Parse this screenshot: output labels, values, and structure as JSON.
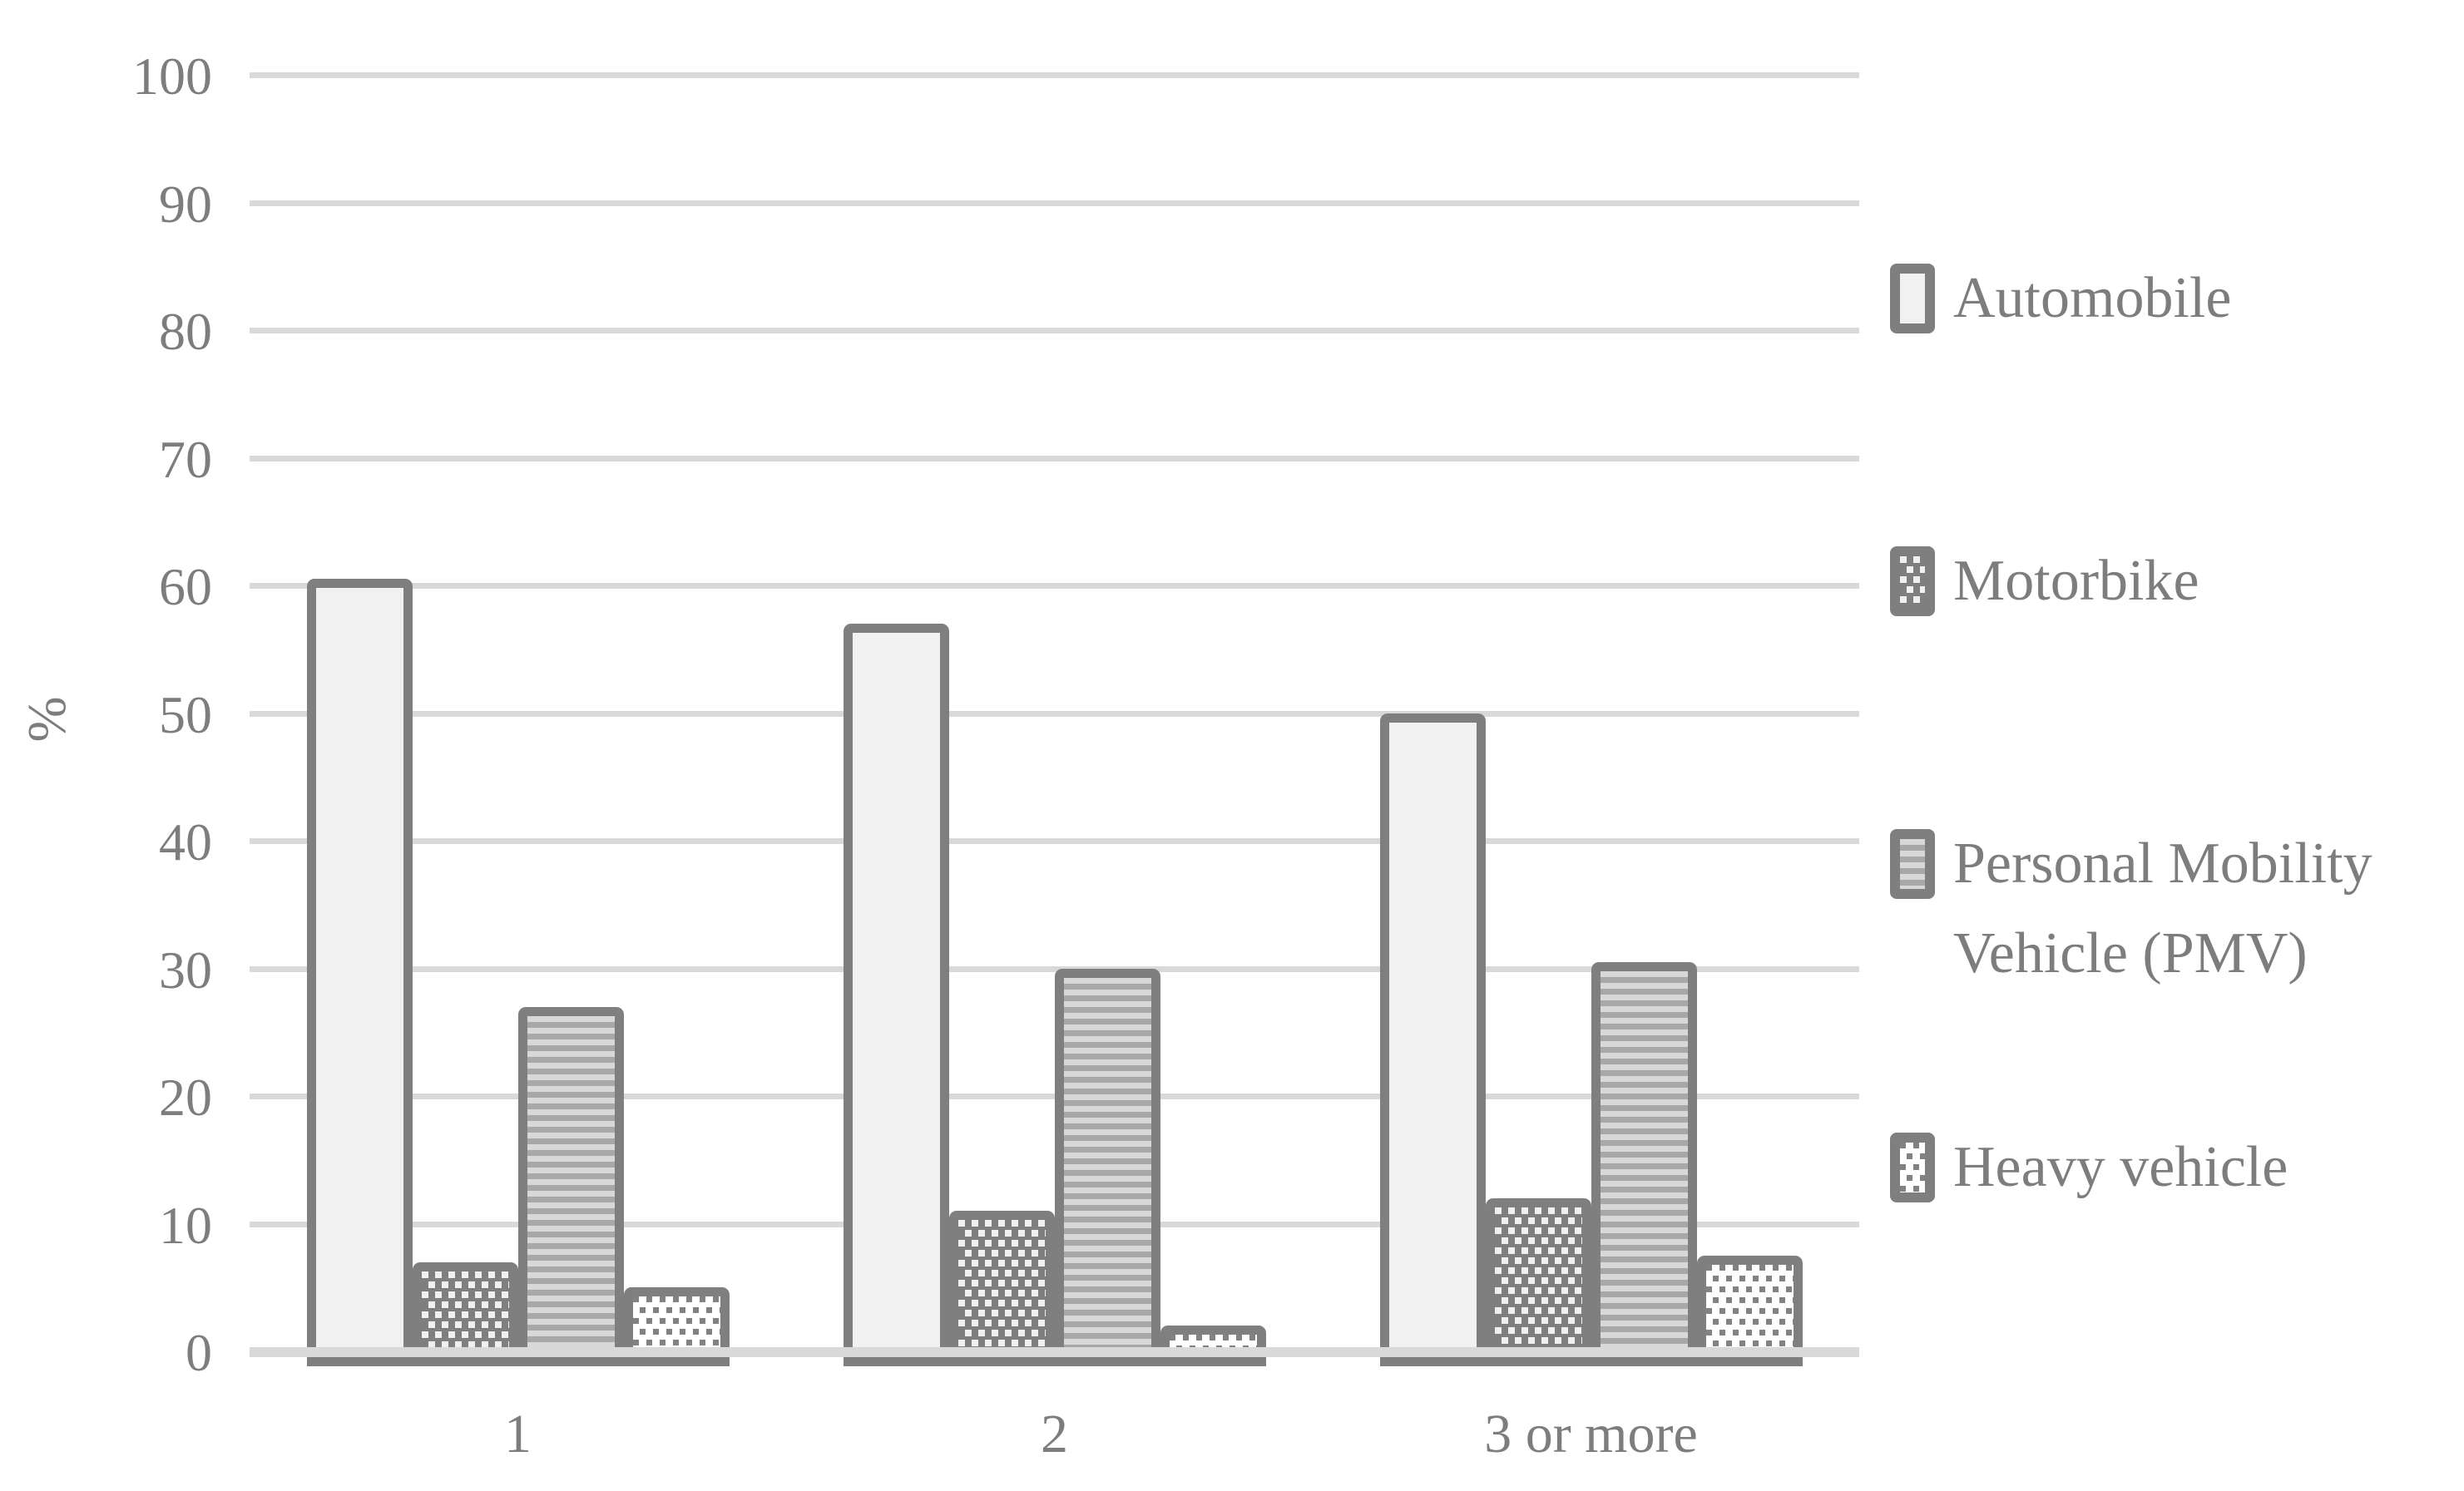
{
  "chart_data": {
    "type": "bar",
    "title": "",
    "xlabel": "",
    "ylabel": "%",
    "categories": [
      "1",
      "2",
      "3 or more"
    ],
    "series": [
      {
        "name": "Automobile",
        "pattern": "solid-light",
        "values": [
          60.5,
          57,
          50
        ]
      },
      {
        "name": "Motorbike",
        "pattern": "white-dots-on-gray",
        "values": [
          7,
          11,
          12
        ]
      },
      {
        "name": "Personal Mobility Vehicle (PMV)",
        "pattern": "horizontal-stripes",
        "values": [
          27,
          30,
          30.5
        ]
      },
      {
        "name": "Heavy vehicle",
        "pattern": "gray-dots-on-white",
        "values": [
          5,
          2,
          7.5
        ]
      }
    ],
    "ylim": [
      0,
      100
    ],
    "yticks": [
      0,
      10,
      20,
      30,
      40,
      50,
      60,
      70,
      80,
      90,
      100
    ],
    "grid": true,
    "legend_position": "right"
  },
  "colors": {
    "background": "#ffffff",
    "text": "#7d7d7d",
    "gridline": "#d9d9d9",
    "bar_border": "#7f7f7f",
    "automobile_fill": "#f1f1f1",
    "motorbike_bg": "#7f7f7f",
    "motorbike_dot": "#f0f0f0",
    "pmv_stripe_dark": "#a8a8a8",
    "pmv_stripe_light": "#d8d8d8",
    "heavy_bg": "#ffffff",
    "heavy_dot": "#828282"
  }
}
